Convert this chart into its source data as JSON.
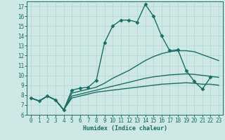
{
  "title": "",
  "xlabel": "Humidex (Indice chaleur)",
  "ylabel": "",
  "bg_color": "#cde8e5",
  "grid_color": "#b8d8d5",
  "line_color": "#1a6e65",
  "xlim": [
    -0.5,
    23.5
  ],
  "ylim": [
    6,
    17.5
  ],
  "yticks": [
    6,
    7,
    8,
    9,
    10,
    11,
    12,
    13,
    14,
    15,
    16,
    17
  ],
  "xticks": [
    0,
    1,
    2,
    3,
    4,
    5,
    6,
    7,
    8,
    9,
    10,
    11,
    12,
    13,
    14,
    15,
    16,
    17,
    18,
    19,
    20,
    21,
    22,
    23
  ],
  "series": [
    {
      "x": [
        0,
        1,
        2,
        3,
        4,
        5,
        6,
        7,
        8,
        9,
        10,
        11,
        12,
        13,
        14,
        15,
        16,
        17,
        18,
        19,
        20,
        21,
        22
      ],
      "y": [
        7.7,
        7.4,
        7.9,
        7.5,
        6.5,
        8.5,
        8.7,
        8.8,
        9.5,
        13.3,
        15.0,
        15.6,
        15.6,
        15.4,
        17.2,
        16.0,
        14.0,
        12.5,
        12.6,
        10.5,
        9.4,
        8.6,
        9.8
      ],
      "marker": "D",
      "markersize": 2.5,
      "linewidth": 1.0
    },
    {
      "x": [
        0,
        1,
        2,
        3,
        4,
        5,
        6,
        7,
        8,
        9,
        10,
        11,
        12,
        13,
        14,
        15,
        16,
        17,
        18,
        19,
        20,
        21,
        22,
        23
      ],
      "y": [
        7.7,
        7.4,
        7.9,
        7.5,
        6.5,
        8.2,
        8.4,
        8.6,
        8.8,
        9.2,
        9.7,
        10.1,
        10.5,
        11.0,
        11.5,
        11.9,
        12.2,
        12.4,
        12.5,
        12.5,
        12.4,
        12.1,
        11.8,
        11.5
      ],
      "marker": null,
      "markersize": 0,
      "linewidth": 1.0
    },
    {
      "x": [
        0,
        1,
        2,
        3,
        4,
        5,
        6,
        7,
        8,
        9,
        10,
        11,
        12,
        13,
        14,
        15,
        16,
        17,
        18,
        19,
        20,
        21,
        22,
        23
      ],
      "y": [
        7.7,
        7.4,
        7.9,
        7.5,
        6.5,
        7.9,
        8.1,
        8.3,
        8.5,
        8.7,
        8.9,
        9.1,
        9.3,
        9.5,
        9.7,
        9.85,
        9.95,
        10.05,
        10.1,
        10.15,
        10.1,
        10.0,
        9.9,
        9.8
      ],
      "marker": null,
      "markersize": 0,
      "linewidth": 1.0
    },
    {
      "x": [
        0,
        1,
        2,
        3,
        4,
        5,
        6,
        7,
        8,
        9,
        10,
        11,
        12,
        13,
        14,
        15,
        16,
        17,
        18,
        19,
        20,
        21,
        22,
        23
      ],
      "y": [
        7.7,
        7.4,
        7.9,
        7.5,
        6.5,
        7.7,
        7.9,
        8.1,
        8.3,
        8.4,
        8.5,
        8.6,
        8.7,
        8.8,
        8.9,
        9.0,
        9.1,
        9.15,
        9.2,
        9.25,
        9.2,
        9.1,
        9.1,
        9.0
      ],
      "marker": null,
      "markersize": 0,
      "linewidth": 1.0
    }
  ]
}
